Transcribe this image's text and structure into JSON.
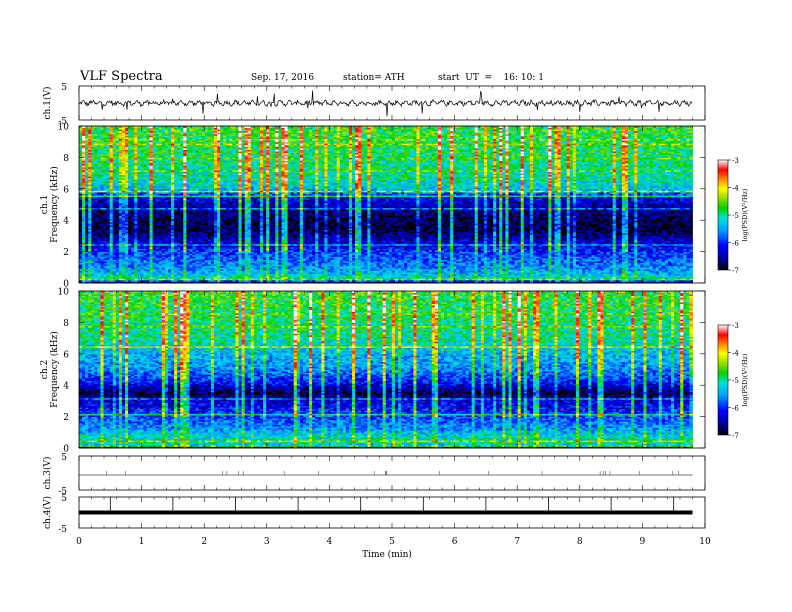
{
  "header": {
    "title": "VLF  Spectra",
    "date": "Sep. 17, 2016",
    "station": "station= ATH",
    "start": "start  UT  =    16: 10: 1"
  },
  "chart_data": [
    {
      "type": "line",
      "name": "ch1-waveform",
      "ylabel": "ch.1(V)",
      "ylim": [
        -5,
        5
      ],
      "yticks": [
        "5",
        "-5"
      ],
      "x_range_min": [
        0,
        9.8
      ],
      "baseline": 0
    },
    {
      "type": "heatmap",
      "name": "ch1-spectrogram",
      "ylabel": "ch.1\nFrequency  (kHz)",
      "ylim": [
        0,
        10
      ],
      "yticks": [
        "0",
        "2",
        "4",
        "6",
        "8",
        "10"
      ],
      "x_range_min": [
        0,
        9.8
      ],
      "colorbar": {
        "label": "log(PSD)(V²/Hz)",
        "ticks": [
          "-3",
          "-4",
          "-5",
          "-6",
          "-7"
        ],
        "range": [
          -7,
          -3
        ]
      },
      "profile": [
        {
          "f": 0.0,
          "v": -6.8
        },
        {
          "f": 0.3,
          "v": -5.0
        },
        {
          "f": 0.6,
          "v": -5.4
        },
        {
          "f": 1.0,
          "v": -5.6
        },
        {
          "f": 1.5,
          "v": -5.8
        },
        {
          "f": 2.0,
          "v": -6.0
        },
        {
          "f": 2.7,
          "v": -6.4
        },
        {
          "f": 3.5,
          "v": -6.9
        },
        {
          "f": 4.5,
          "v": -6.7
        },
        {
          "f": 5.5,
          "v": -6.2
        },
        {
          "f": 6.0,
          "v": -5.3
        },
        {
          "f": 7.0,
          "v": -5.0
        },
        {
          "f": 8.0,
          "v": -4.9
        },
        {
          "f": 9.0,
          "v": -4.8
        },
        {
          "f": 10.0,
          "v": -4.7
        }
      ]
    },
    {
      "type": "heatmap",
      "name": "ch2-spectrogram",
      "ylabel": "ch.2\nFrequency  (kHz)",
      "ylim": [
        0,
        10
      ],
      "yticks": [
        "0",
        "2",
        "4",
        "6",
        "8",
        "10"
      ],
      "x_range_min": [
        0,
        9.8
      ],
      "colorbar": {
        "label": "log(PSD)(V²/Hz)",
        "ticks": [
          "-3",
          "-4",
          "-5",
          "-6",
          "-7"
        ],
        "range": [
          -7,
          -3
        ]
      },
      "profile": [
        {
          "f": 0.0,
          "v": -6.8
        },
        {
          "f": 0.3,
          "v": -5.0
        },
        {
          "f": 0.8,
          "v": -5.2
        },
        {
          "f": 1.3,
          "v": -5.6
        },
        {
          "f": 2.0,
          "v": -5.9
        },
        {
          "f": 3.0,
          "v": -6.3
        },
        {
          "f": 3.5,
          "v": -6.9
        },
        {
          "f": 4.2,
          "v": -6.1
        },
        {
          "f": 5.0,
          "v": -5.6
        },
        {
          "f": 6.0,
          "v": -5.4
        },
        {
          "f": 7.0,
          "v": -5.0
        },
        {
          "f": 8.0,
          "v": -4.9
        },
        {
          "f": 9.0,
          "v": -4.8
        },
        {
          "f": 10.0,
          "v": -4.7
        }
      ]
    },
    {
      "type": "line",
      "name": "ch3-waveform",
      "ylabel": "ch.3(V)",
      "ylim": [
        -5,
        5
      ],
      "yticks": [
        "5",
        "-5"
      ],
      "x_range_min": [
        0,
        9.8
      ],
      "baseline": 0
    },
    {
      "type": "line",
      "name": "ch4-waveform",
      "ylabel": "ch.4(V)",
      "ylim": [
        -5,
        5
      ],
      "yticks": [
        "5",
        "-5"
      ],
      "x_range_min": [
        0,
        9.8
      ],
      "baseline": 0
    }
  ],
  "xaxis": {
    "label": "Time  (min)",
    "ticks": [
      "0",
      "1",
      "2",
      "3",
      "4",
      "5",
      "6",
      "7",
      "8",
      "9",
      "10"
    ]
  }
}
